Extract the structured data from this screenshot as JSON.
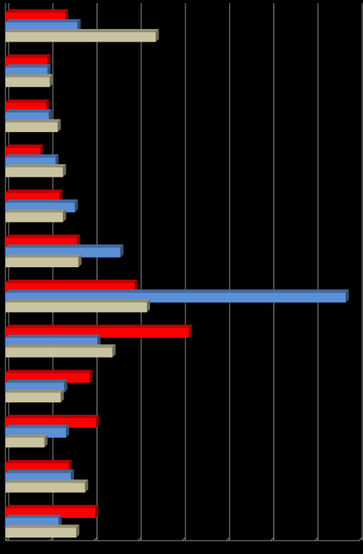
{
  "chart_data": {
    "type": "bar",
    "orientation": "horizontal",
    "style": "3d-clustered",
    "grid": true,
    "legend": "none",
    "xlim": [
      0,
      8
    ],
    "categories": [
      "",
      "",
      "",
      "",
      "",
      "",
      "",
      "",
      "",
      "",
      "",
      ""
    ],
    "series": [
      {
        "color": "#ff0000",
        "values": [
          1.35,
          0.95,
          0.92,
          0.78,
          1.22,
          1.62,
          2.92,
          4.15,
          1.9,
          2.05,
          1.43,
          2.03
        ]
      },
      {
        "color": "#5b8fd6",
        "values": [
          1.63,
          0.95,
          0.98,
          1.13,
          1.57,
          2.6,
          7.7,
          2.08,
          1.33,
          1.37,
          1.48,
          1.2
        ]
      },
      {
        "color": "#c9c3a1",
        "values": [
          3.4,
          1.0,
          1.18,
          1.3,
          1.3,
          1.65,
          3.2,
          2.42,
          1.25,
          0.88,
          1.8,
          1.6
        ]
      }
    ]
  }
}
